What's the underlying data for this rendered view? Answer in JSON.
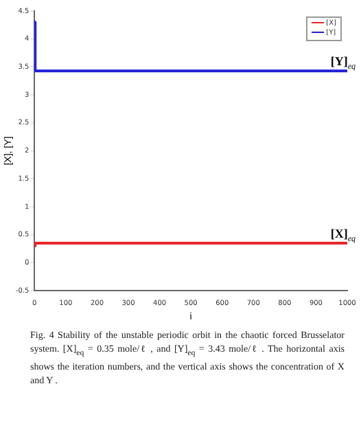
{
  "chart_data": {
    "type": "line",
    "xlabel": "i",
    "ylabel": "[X], [Y]",
    "series": [
      {
        "name": "[X]",
        "color": "#e8262b",
        "x": [
          0,
          2,
          1000
        ],
        "values": [
          0.3,
          0.35,
          0.35
        ]
      },
      {
        "name": "[Y]",
        "color": "#1f1fd8",
        "x": [
          0,
          2,
          1000
        ],
        "values": [
          4.3,
          3.43,
          3.43
        ]
      }
    ],
    "xlim": [
      0,
      1000
    ],
    "xticks": [
      0,
      100,
      200,
      300,
      400,
      500,
      600,
      700,
      800,
      900,
      1000
    ],
    "ylim": [
      -0.5,
      4.5
    ],
    "yticks": [
      -0.5,
      0,
      0.5,
      1,
      1.5,
      2,
      2.5,
      3,
      3.5,
      4,
      4.5
    ],
    "grid": false,
    "legend": "top right",
    "marker": "none",
    "line_style": "solid",
    "annotations": [
      {
        "text": "[Y]$_{eq}$",
        "x": 1000,
        "y": 3.43
      },
      {
        "text": "[X]$_{eq}$",
        "x": 1000,
        "y": 0.35
      },
      "Fig. 4 Stability of the unstable periodic orbit in the chaotic forced Brusselator system. [X]$_{eq}$ = 0.35 mole/ℓ , and [Y]$_{eq}$ = 3.43 mole/ℓ . The horizontal axis shows the iteration numbers, and the vertical axis shows the concentration of X and Y ."
    ]
  }
}
